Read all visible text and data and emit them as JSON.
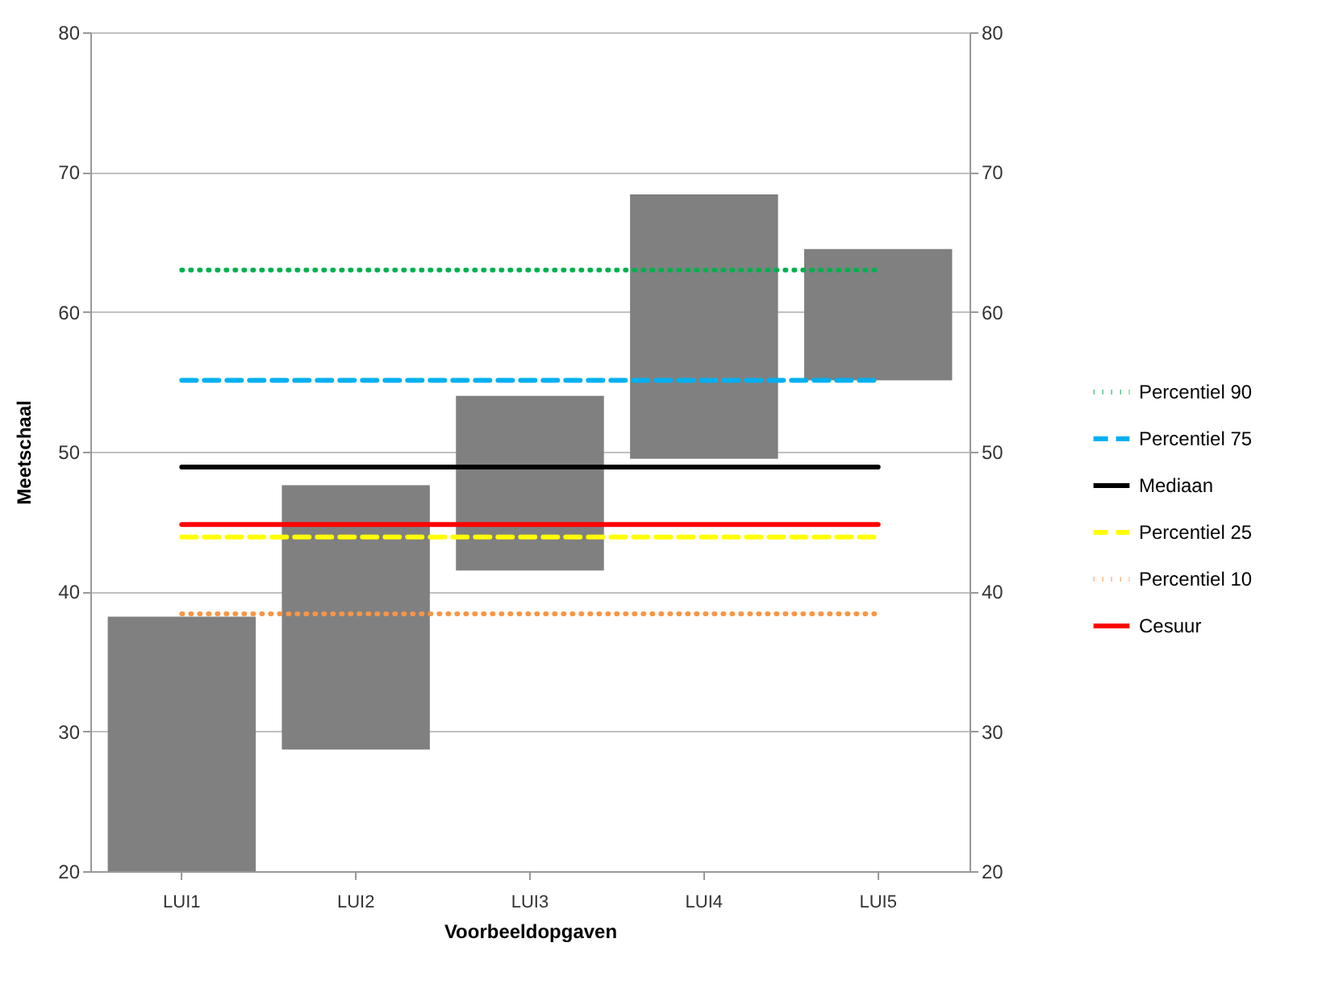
{
  "chart_data": {
    "type": "bar",
    "xlabel": "Voorbeeldopgaven",
    "ylabel": "Meetschaal",
    "categories": [
      "LUI1",
      "LUI2",
      "LUI3",
      "LUI4",
      "LUI5"
    ],
    "series": [
      {
        "color": "#808080",
        "base": [
          20,
          28.7,
          41.5,
          49.5,
          55.1
        ],
        "values": [
          18.2,
          18.9,
          12.5,
          18.9,
          9.4
        ]
      },
      {
        "type": "line",
        "name": "Percentiel 90",
        "color": "#00b050",
        "line_style": "dotted",
        "values": [
          63,
          63,
          63,
          63,
          63
        ]
      },
      {
        "type": "line",
        "name": "Percentiel 75",
        "color": "#00b0f0",
        "line_style": "dashed",
        "values": [
          55.1,
          55.1,
          55.1,
          55.1,
          55.1
        ]
      },
      {
        "type": "line",
        "name": "Mediaan",
        "color": "#000000",
        "line_style": "solid",
        "values": [
          48.9,
          48.9,
          48.9,
          48.9,
          48.9
        ]
      },
      {
        "type": "line",
        "name": "Percentiel 25",
        "color": "#ffff00",
        "line_style": "dashed",
        "values": [
          43.9,
          43.9,
          43.9,
          43.9,
          43.9
        ]
      },
      {
        "type": "line",
        "name": "Percentiel 10",
        "color": "#f79646",
        "line_style": "dotted",
        "values": [
          38.4,
          38.4,
          38.4,
          38.4,
          38.4
        ]
      },
      {
        "type": "line",
        "name": "Cesuur",
        "color": "#ff0000",
        "line_style": "solid",
        "values": [
          44.8,
          44.8,
          44.8,
          44.8,
          44.8
        ]
      }
    ],
    "ylim": [
      20,
      80
    ],
    "yticks": [
      20,
      30,
      40,
      50,
      60,
      70,
      80
    ],
    "y2lim": [
      20,
      80
    ],
    "y2ticks": [
      20,
      30,
      40,
      50,
      60,
      70,
      80
    ],
    "grid": "y",
    "legend": "right"
  }
}
